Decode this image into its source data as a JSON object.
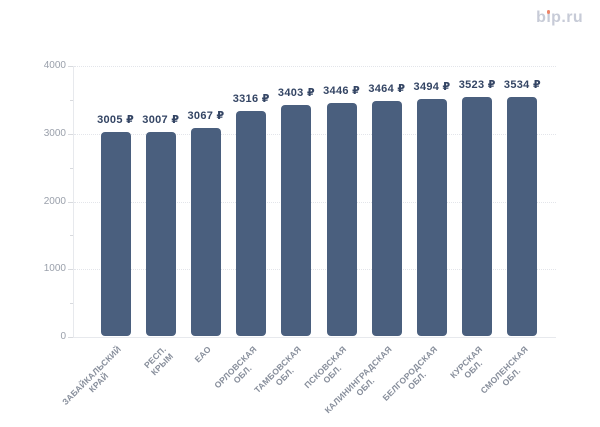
{
  "logo": {
    "text": "bip.ru",
    "pre": "b",
    "dotless_i": "ı",
    "post": "p.ru",
    "text_color": "#c7cbd7",
    "dot_color": "#ee8468"
  },
  "chart_data": {
    "type": "bar",
    "title": "",
    "xlabel": "",
    "ylabel": "",
    "categories": [
      "ЗАБАЙКАЛЬСКИЙ\nКРАЙ",
      "РЕСП. КРЫМ",
      "ЕАО",
      "ОРЛОВСКАЯ\nОБЛ.",
      "ТАМБОВСКАЯ\nОБЛ.",
      "ПСКОВСКАЯ\nОБЛ.",
      "КАЛИНИНГРАДСКАЯ\nОБЛ.",
      "БЕЛГОРОДСКАЯ\nОБЛ.",
      "КУРСКАЯ ОБЛ.",
      "СМОЛЕНСКАЯ\nОБЛ."
    ],
    "values": [
      3005,
      3007,
      3067,
      3316,
      3403,
      3446,
      3464,
      3494,
      3523,
      3534
    ],
    "value_labels": [
      "3005 ₽",
      "3007 ₽",
      "3067 ₽",
      "3316 ₽",
      "3403 ₽",
      "3446 ₽",
      "3464 ₽",
      "3494 ₽",
      "3523 ₽",
      "3534 ₽"
    ],
    "currency": "₽",
    "ylim": [
      0,
      4000
    ],
    "yticks": [
      0,
      1000,
      2000,
      3000,
      4000
    ],
    "ytick_labels": [
      "0",
      "1000",
      "2000",
      "3000",
      "4000"
    ],
    "minor_yticks": [
      500,
      1500,
      2500,
      3500
    ],
    "grid": "horizontal-dotted",
    "legend": "none",
    "colors": {
      "bar": "#4a5f7e",
      "value_label": "#344564",
      "y_axis_label": "#9aa0ab",
      "x_axis_label": "#878e9b"
    }
  }
}
